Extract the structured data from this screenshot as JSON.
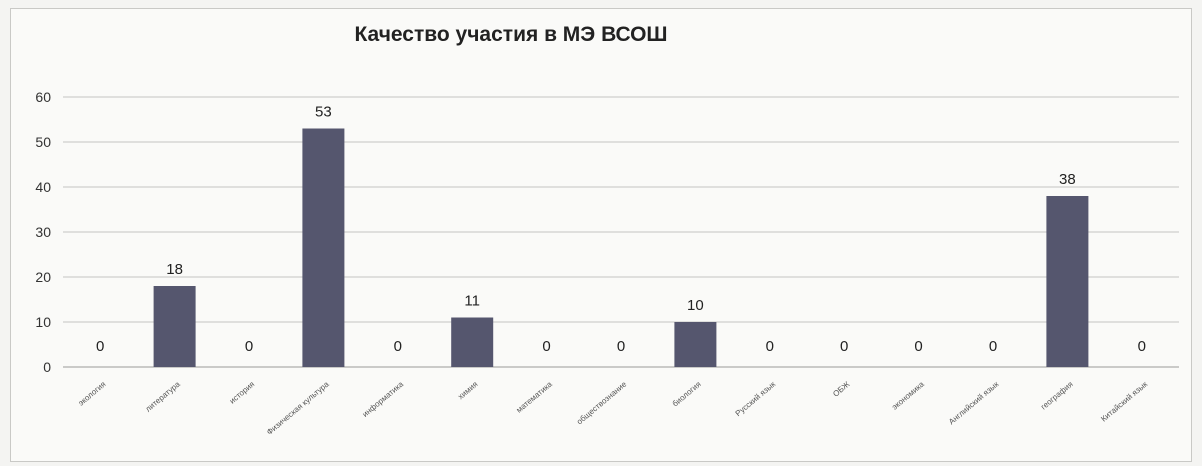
{
  "chart_data": {
    "type": "bar",
    "title": "Качество участия в МЭ ВСОШ",
    "categories": [
      "экология",
      "литература",
      "история",
      "Физическая культура",
      "информатика",
      "химия",
      "математика",
      "обществознание",
      "биология",
      "Русский язык",
      "ОБЖ",
      "экономика",
      "Английский язык",
      "география",
      "Китайский язык"
    ],
    "values": [
      0,
      18,
      0,
      53,
      0,
      11,
      0,
      0,
      10,
      0,
      0,
      0,
      0,
      38,
      0
    ],
    "data_labels": [
      "0",
      "18",
      "0",
      "53",
      "0",
      "11",
      "0",
      "0",
      "10",
      "0",
      "0",
      "0",
      "0",
      "38",
      "0"
    ],
    "y_ticks": [
      "0",
      "10",
      "20",
      "30",
      "40",
      "50",
      "60"
    ],
    "ylim": [
      0,
      60
    ],
    "xlabel": "",
    "ylabel": "",
    "grid": true,
    "legend": "none",
    "bar_color": "#55566e"
  }
}
